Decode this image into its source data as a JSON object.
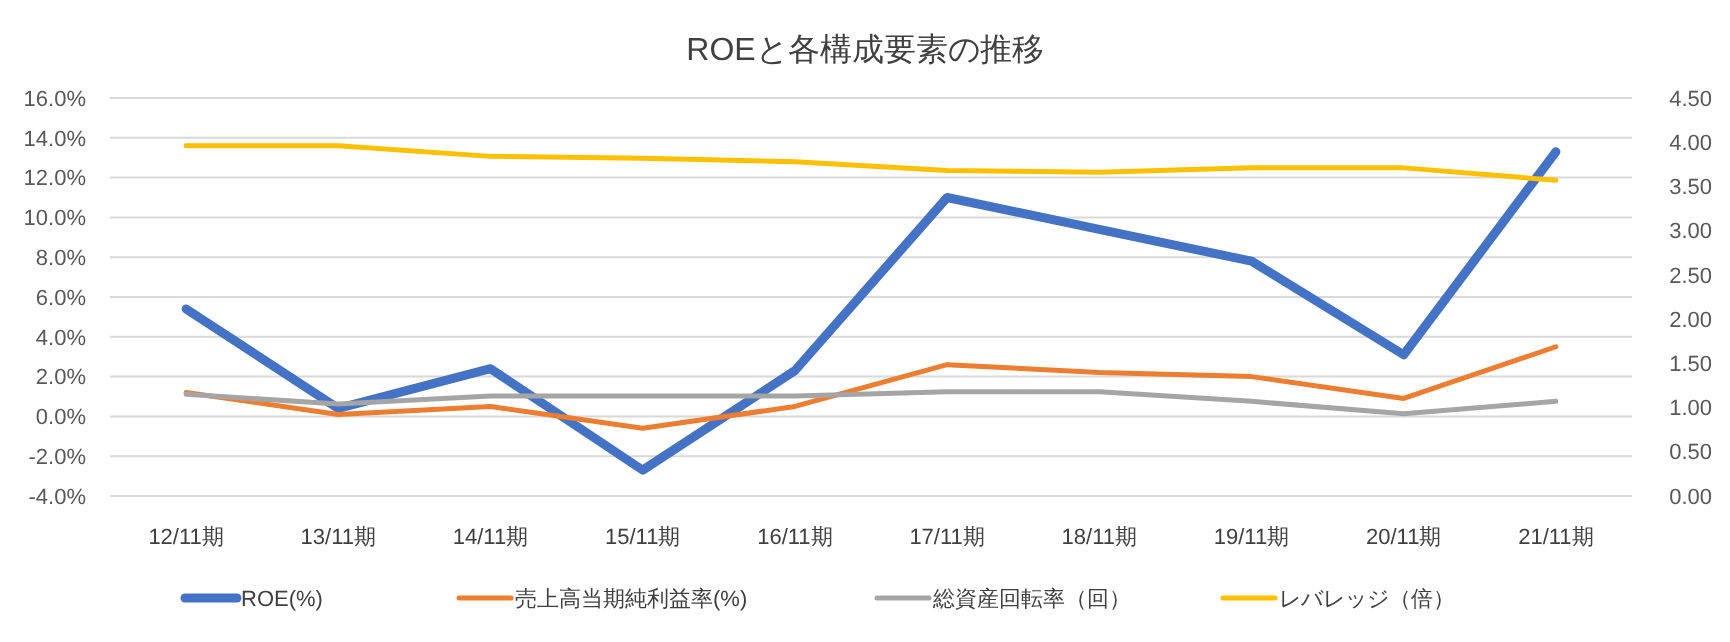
{
  "chart_data": {
    "type": "line",
    "title": "ROEと各構成要素の推移",
    "categories": [
      "12/11期",
      "13/11期",
      "14/11期",
      "15/11期",
      "16/11期",
      "17/11期",
      "18/11期",
      "19/11期",
      "20/11期",
      "21/11期"
    ],
    "series": [
      {
        "name": "ROE(%)",
        "color": "#4472c4",
        "values": [
          5.4,
          0.4,
          2.4,
          -2.7,
          2.3,
          11.0,
          9.4,
          7.8,
          3.1,
          13.3
        ]
      },
      {
        "name": "売上高当期純利益率(%)",
        "color": "#ed7d31",
        "values": [
          1.2,
          0.1,
          0.5,
          -0.6,
          0.5,
          2.6,
          2.2,
          2.0,
          0.9,
          3.5
        ]
      },
      {
        "name": "総資産回転率（回）",
        "color": "#a5a5a5",
        "axis": "y2",
        "values": [
          1.15,
          1.04,
          1.13,
          1.13,
          1.13,
          1.18,
          1.18,
          1.07,
          0.93,
          1.07
        ]
      },
      {
        "name": "レバレッジ（倍）",
        "color": "#ffc000",
        "axis": "y2",
        "values": [
          3.96,
          3.96,
          3.84,
          3.82,
          3.78,
          3.68,
          3.66,
          3.71,
          3.71,
          3.57
        ]
      }
    ],
    "ylim": [
      -4,
      16
    ],
    "yticks": [
      {
        "value": -4,
        "label": "-4.0%"
      },
      {
        "value": -2,
        "label": "-2.0%"
      },
      {
        "value": 0,
        "label": "0.0%"
      },
      {
        "value": 2,
        "label": "2.0%"
      },
      {
        "value": 4,
        "label": "4.0%"
      },
      {
        "value": 6,
        "label": "6.0%"
      },
      {
        "value": 8,
        "label": "8.0%"
      },
      {
        "value": 10,
        "label": "10.0%"
      },
      {
        "value": 12,
        "label": "12.0%"
      },
      {
        "value": 14,
        "label": "14.0%"
      },
      {
        "value": 16,
        "label": "16.0%"
      }
    ],
    "y2lim": [
      0,
      4.5
    ],
    "y2ticks": [
      {
        "value": 0,
        "label": "0.00"
      },
      {
        "value": 0.5,
        "label": "0.50"
      },
      {
        "value": 1,
        "label": "1.00"
      },
      {
        "value": 1.5,
        "label": "1.50"
      },
      {
        "value": 2,
        "label": "2.00"
      },
      {
        "value": 2.5,
        "label": "2.50"
      },
      {
        "value": 3,
        "label": "3.00"
      },
      {
        "value": 3.5,
        "label": "3.50"
      },
      {
        "value": 4,
        "label": "4.00"
      },
      {
        "value": 4.5,
        "label": "4.50"
      }
    ],
    "grid": "y",
    "legend": "bottom",
    "marker": "none",
    "line_style": "solid"
  }
}
